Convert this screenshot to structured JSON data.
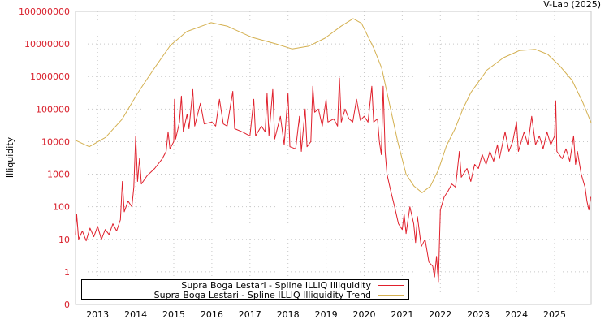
{
  "watermark": "V-Lab (2025)",
  "chart_data": {
    "type": "line",
    "title": "",
    "xlabel": "",
    "ylabel": "Illiquidity",
    "yscale": "log",
    "ylim": [
      0.1,
      100000000
    ],
    "xlim": [
      2012.42,
      2025.96
    ],
    "grid": true,
    "legend_position": "bottom-left",
    "y_ticks": [
      {
        "value": 100000000,
        "label": "100000000"
      },
      {
        "value": 10000000,
        "label": "10000000"
      },
      {
        "value": 1000000,
        "label": "1000000"
      },
      {
        "value": 100000,
        "label": "100000"
      },
      {
        "value": 10000,
        "label": "10000"
      },
      {
        "value": 1000,
        "label": "1000"
      },
      {
        "value": 100,
        "label": "100"
      },
      {
        "value": 10,
        "label": "10"
      },
      {
        "value": 1,
        "label": "1"
      },
      {
        "value": 0.1,
        "label": "0"
      }
    ],
    "x_ticks": [
      {
        "value": 2013,
        "label": "2013"
      },
      {
        "value": 2014,
        "label": "2014"
      },
      {
        "value": 2015,
        "label": "2015"
      },
      {
        "value": 2016,
        "label": "2016"
      },
      {
        "value": 2017,
        "label": "2017"
      },
      {
        "value": 2018,
        "label": "2018"
      },
      {
        "value": 2019,
        "label": "2019"
      },
      {
        "value": 2020,
        "label": "2020"
      },
      {
        "value": 2021,
        "label": "2021"
      },
      {
        "value": 2022,
        "label": "2022"
      },
      {
        "value": 2023,
        "label": "2023"
      },
      {
        "value": 2024,
        "label": "2024"
      },
      {
        "value": 2025,
        "label": "2025"
      }
    ],
    "series": [
      {
        "name": "Supra Boga Lestari - Spline ILLIQ Illiquidity",
        "color": "#e0202c",
        "points": [
          [
            2012.42,
            14
          ],
          [
            2012.45,
            60
          ],
          [
            2012.5,
            10
          ],
          [
            2012.6,
            18
          ],
          [
            2012.7,
            9
          ],
          [
            2012.8,
            22
          ],
          [
            2012.9,
            12
          ],
          [
            2013.0,
            25
          ],
          [
            2013.1,
            10
          ],
          [
            2013.2,
            20
          ],
          [
            2013.3,
            14
          ],
          [
            2013.4,
            30
          ],
          [
            2013.5,
            18
          ],
          [
            2013.6,
            40
          ],
          [
            2013.65,
            600
          ],
          [
            2013.7,
            70
          ],
          [
            2013.8,
            150
          ],
          [
            2013.9,
            100
          ],
          [
            2013.95,
            400
          ],
          [
            2014.0,
            15000
          ],
          [
            2014.05,
            600
          ],
          [
            2014.1,
            3000
          ],
          [
            2014.15,
            500
          ],
          [
            2014.3,
            900
          ],
          [
            2014.5,
            1500
          ],
          [
            2014.7,
            3000
          ],
          [
            2014.8,
            5000
          ],
          [
            2014.85,
            20000
          ],
          [
            2014.9,
            6000
          ],
          [
            2015.0,
            10000
          ],
          [
            2015.02,
            200000
          ],
          [
            2015.05,
            12000
          ],
          [
            2015.15,
            40000
          ],
          [
            2015.2,
            250000
          ],
          [
            2015.25,
            20000
          ],
          [
            2015.35,
            70000
          ],
          [
            2015.4,
            25000
          ],
          [
            2015.5,
            400000
          ],
          [
            2015.55,
            30000
          ],
          [
            2015.7,
            150000
          ],
          [
            2015.8,
            35000
          ],
          [
            2016.0,
            40000
          ],
          [
            2016.1,
            30000
          ],
          [
            2016.2,
            200000
          ],
          [
            2016.3,
            35000
          ],
          [
            2016.4,
            30000
          ],
          [
            2016.55,
            350000
          ],
          [
            2016.6,
            25000
          ],
          [
            2016.8,
            20000
          ],
          [
            2017.0,
            15000
          ],
          [
            2017.1,
            200000
          ],
          [
            2017.15,
            15000
          ],
          [
            2017.3,
            30000
          ],
          [
            2017.4,
            20000
          ],
          [
            2017.45,
            300000
          ],
          [
            2017.5,
            15000
          ],
          [
            2017.6,
            400000
          ],
          [
            2017.65,
            12000
          ],
          [
            2017.8,
            60000
          ],
          [
            2017.9,
            8000
          ],
          [
            2018.0,
            300000
          ],
          [
            2018.05,
            7000
          ],
          [
            2018.2,
            6000
          ],
          [
            2018.3,
            60000
          ],
          [
            2018.35,
            5000
          ],
          [
            2018.45,
            100000
          ],
          [
            2018.5,
            7000
          ],
          [
            2018.6,
            10000
          ],
          [
            2018.65,
            500000
          ],
          [
            2018.7,
            80000
          ],
          [
            2018.8,
            100000
          ],
          [
            2018.9,
            30000
          ],
          [
            2019.0,
            200000
          ],
          [
            2019.05,
            40000
          ],
          [
            2019.2,
            50000
          ],
          [
            2019.3,
            30000
          ],
          [
            2019.35,
            900000
          ],
          [
            2019.4,
            40000
          ],
          [
            2019.5,
            100000
          ],
          [
            2019.6,
            50000
          ],
          [
            2019.7,
            40000
          ],
          [
            2019.8,
            200000
          ],
          [
            2019.9,
            45000
          ],
          [
            2020.0,
            60000
          ],
          [
            2020.1,
            40000
          ],
          [
            2020.2,
            500000
          ],
          [
            2020.25,
            40000
          ],
          [
            2020.35,
            50000
          ],
          [
            2020.4,
            10000
          ],
          [
            2020.45,
            4000
          ],
          [
            2020.5,
            500000
          ],
          [
            2020.55,
            5000
          ],
          [
            2020.6,
            1000
          ],
          [
            2020.7,
            300
          ],
          [
            2020.8,
            100
          ],
          [
            2020.9,
            30
          ],
          [
            2021.0,
            20
          ],
          [
            2021.05,
            60
          ],
          [
            2021.1,
            15
          ],
          [
            2021.2,
            100
          ],
          [
            2021.3,
            30
          ],
          [
            2021.35,
            8
          ],
          [
            2021.4,
            50
          ],
          [
            2021.5,
            6
          ],
          [
            2021.6,
            10
          ],
          [
            2021.7,
            2
          ],
          [
            2021.8,
            1.5
          ],
          [
            2021.85,
            0.7
          ],
          [
            2021.9,
            3
          ],
          [
            2021.95,
            0.5
          ],
          [
            2022.0,
            80
          ],
          [
            2022.1,
            200
          ],
          [
            2022.2,
            300
          ],
          [
            2022.3,
            500
          ],
          [
            2022.4,
            400
          ],
          [
            2022.5,
            5000
          ],
          [
            2022.55,
            800
          ],
          [
            2022.7,
            1500
          ],
          [
            2022.8,
            600
          ],
          [
            2022.9,
            2000
          ],
          [
            2023.0,
            1500
          ],
          [
            2023.1,
            4000
          ],
          [
            2023.2,
            2000
          ],
          [
            2023.3,
            5000
          ],
          [
            2023.4,
            2500
          ],
          [
            2023.5,
            8000
          ],
          [
            2023.55,
            3000
          ],
          [
            2023.7,
            20000
          ],
          [
            2023.8,
            5000
          ],
          [
            2023.9,
            10000
          ],
          [
            2024.0,
            40000
          ],
          [
            2024.05,
            5000
          ],
          [
            2024.2,
            20000
          ],
          [
            2024.3,
            8000
          ],
          [
            2024.4,
            60000
          ],
          [
            2024.5,
            8000
          ],
          [
            2024.6,
            15000
          ],
          [
            2024.7,
            6000
          ],
          [
            2024.8,
            20000
          ],
          [
            2024.9,
            8000
          ],
          [
            2025.0,
            15000
          ],
          [
            2025.03,
            180000
          ],
          [
            2025.06,
            5000
          ],
          [
            2025.2,
            3000
          ],
          [
            2025.3,
            6000
          ],
          [
            2025.4,
            2500
          ],
          [
            2025.5,
            15000
          ],
          [
            2025.55,
            2000
          ],
          [
            2025.6,
            5000
          ],
          [
            2025.7,
            1000
          ],
          [
            2025.8,
            400
          ],
          [
            2025.85,
            150
          ],
          [
            2025.9,
            80
          ],
          [
            2025.95,
            200
          ]
        ]
      },
      {
        "name": "Supra Boga Lestari - Spline ILLIQ Illiquidity Trend",
        "color": "#d4b050",
        "points": [
          [
            2012.42,
            11000
          ],
          [
            2012.78,
            7000
          ],
          [
            2013.21,
            13500
          ],
          [
            2013.64,
            48000
          ],
          [
            2014.06,
            320000
          ],
          [
            2014.49,
            1800000
          ],
          [
            2014.91,
            9000000
          ],
          [
            2015.34,
            24000000
          ],
          [
            2015.98,
            45000000
          ],
          [
            2016.41,
            35000000
          ],
          [
            2017.05,
            16000000
          ],
          [
            2017.69,
            10000000
          ],
          [
            2018.11,
            7000000
          ],
          [
            2018.54,
            8500000
          ],
          [
            2018.97,
            15000000
          ],
          [
            2019.39,
            35000000
          ],
          [
            2019.71,
            60000000
          ],
          [
            2019.93,
            43000000
          ],
          [
            2020.25,
            7500000
          ],
          [
            2020.46,
            1800000
          ],
          [
            2020.67,
            135000
          ],
          [
            2020.88,
            10000
          ],
          [
            2021.1,
            1000
          ],
          [
            2021.31,
            430
          ],
          [
            2021.52,
            270
          ],
          [
            2021.74,
            430
          ],
          [
            2021.95,
            1350
          ],
          [
            2022.16,
            7500
          ],
          [
            2022.38,
            24000
          ],
          [
            2022.59,
            100000
          ],
          [
            2022.8,
            320000
          ],
          [
            2023.23,
            1600000
          ],
          [
            2023.66,
            3800000
          ],
          [
            2024.08,
            6300000
          ],
          [
            2024.5,
            6800000
          ],
          [
            2024.82,
            4800000
          ],
          [
            2025.14,
            2100000
          ],
          [
            2025.46,
            760000
          ],
          [
            2025.74,
            160000
          ],
          [
            2025.96,
            38000
          ]
        ]
      }
    ]
  }
}
